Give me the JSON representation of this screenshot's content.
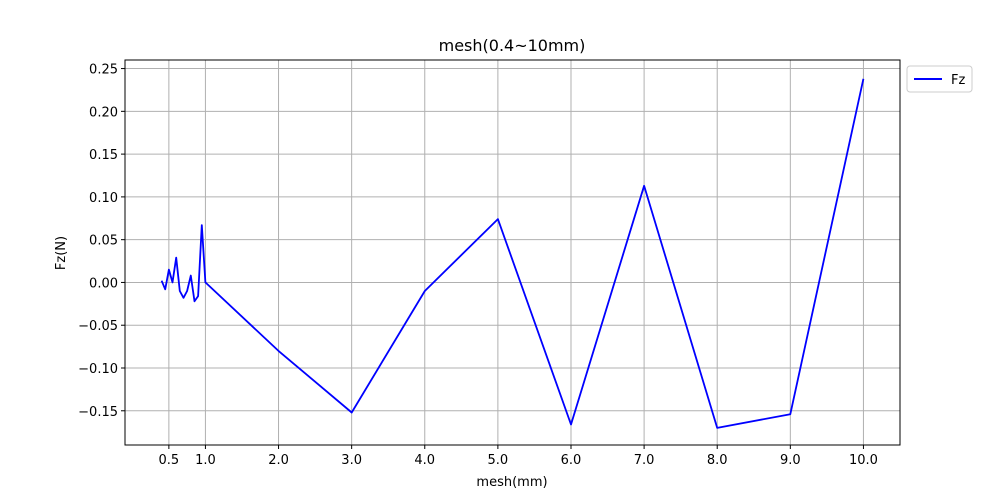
{
  "chart_data": {
    "type": "line",
    "title": "mesh(0.4~10mm)",
    "xlabel": "mesh(mm)",
    "ylabel": "Fz(N)",
    "xlim": [
      -0.1,
      10.5
    ],
    "ylim": [
      -0.19,
      0.26
    ],
    "xticks": [
      0.5,
      1.0,
      2.0,
      3.0,
      4.0,
      5.0,
      6.0,
      7.0,
      8.0,
      9.0,
      10.0
    ],
    "xtick_labels": [
      "0.5",
      "1.0",
      "2.0",
      "3.0",
      "4.0",
      "5.0",
      "6.0",
      "7.0",
      "8.0",
      "9.0",
      "10.0"
    ],
    "yticks": [
      0.25,
      0.2,
      0.15,
      0.1,
      0.05,
      0.0,
      -0.05,
      -0.1,
      -0.15
    ],
    "ytick_labels": [
      "0.25",
      "0.20",
      "0.15",
      "0.10",
      "0.05",
      "0.00",
      "−0.05",
      "−0.10",
      "−0.15"
    ],
    "grid": true,
    "legend_position": "outside-top-right",
    "series": [
      {
        "name": "Fz",
        "color": "#0000ff",
        "x": [
          0.4,
          0.45,
          0.5,
          0.55,
          0.6,
          0.65,
          0.7,
          0.75,
          0.8,
          0.85,
          0.9,
          0.95,
          1.0,
          2.0,
          3.0,
          4.0,
          5.0,
          6.0,
          7.0,
          8.0,
          9.0,
          10.0
        ],
        "y": [
          0.002,
          -0.008,
          0.015,
          0.0,
          0.029,
          -0.01,
          -0.018,
          -0.01,
          0.008,
          -0.022,
          -0.016,
          0.067,
          0.0,
          -0.08,
          -0.152,
          -0.01,
          0.074,
          -0.166,
          0.113,
          -0.17,
          -0.154,
          0.238
        ]
      }
    ]
  }
}
